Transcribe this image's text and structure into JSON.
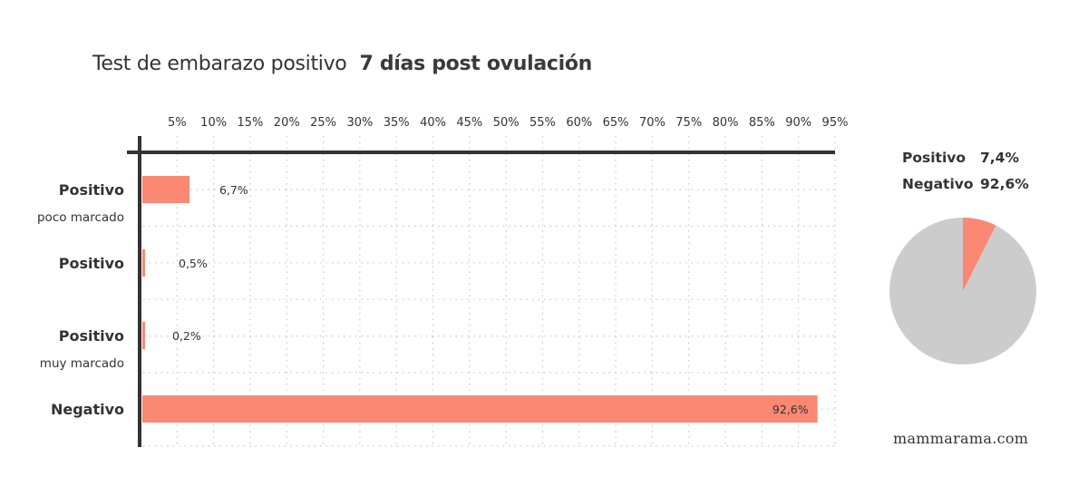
{
  "title": {
    "main": "Test de embarazo positivo",
    "highlight": "7 días post ovulación"
  },
  "axis": {
    "ticks": [
      "5%",
      "10%",
      "15%",
      "20%",
      "25%",
      "30%",
      "35%",
      "40%",
      "45%",
      "50%",
      "55%",
      "60%",
      "65%",
      "70%",
      "75%",
      "80%",
      "85%",
      "90%",
      "95%"
    ]
  },
  "bars": [
    {
      "label": "Positivo",
      "sublabel": "poco marcado",
      "value": 6.7,
      "value_label": "6,7%"
    },
    {
      "label": "Positivo",
      "sublabel": "",
      "value": 0.5,
      "value_label": "0,5%"
    },
    {
      "label": "Positivo",
      "sublabel": "muy marcado",
      "value": 0.2,
      "value_label": "0,2%"
    },
    {
      "label": "Negativo",
      "sublabel": "",
      "value": 92.6,
      "value_label": "92,6%"
    }
  ],
  "summary": {
    "rows": [
      {
        "label": "Positivo",
        "value": "7,4%"
      },
      {
        "label": "Negativo",
        "value": "92,6%"
      }
    ]
  },
  "brand": "mammarama.com",
  "colors": {
    "bar": "#fa8872",
    "pie_negative": "#cccccc",
    "axis": "#333333",
    "grid": "#c8c8c8"
  },
  "chart_data": [
    {
      "type": "bar",
      "orientation": "horizontal",
      "title": "Test de embarazo positivo 7 días post ovulación",
      "categories": [
        "Positivo poco marcado",
        "Positivo",
        "Positivo muy marcado",
        "Negativo"
      ],
      "values": [
        6.7,
        0.5,
        0.2,
        92.6
      ],
      "data_labels": [
        "6,7%",
        "0,5%",
        "0,2%",
        "92,6%"
      ],
      "xlabel": "",
      "ylabel": "",
      "xlim": [
        0,
        95
      ],
      "xticks": [
        5,
        10,
        15,
        20,
        25,
        30,
        35,
        40,
        45,
        50,
        55,
        60,
        65,
        70,
        75,
        80,
        85,
        90,
        95
      ],
      "axis_position": "top",
      "grid": true
    },
    {
      "type": "pie",
      "labels": [
        "Positivo",
        "Negativo"
      ],
      "values": [
        7.4,
        92.6
      ],
      "data_labels": [
        "7,4%",
        "92,6%"
      ],
      "colors": [
        "#fa8872",
        "#cccccc"
      ]
    }
  ]
}
